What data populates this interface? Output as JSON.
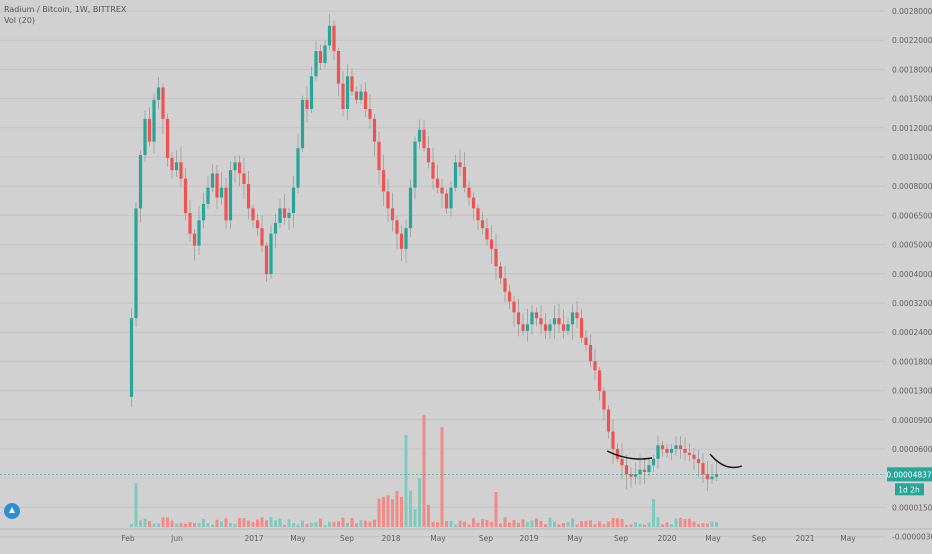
{
  "legend": {
    "symbol": "Radium / Bitcoin, 1W, BITTREX",
    "indicator": "Vol (20)"
  },
  "price_badge": {
    "value": "0.00004837",
    "countdown": "1d 2h",
    "color": "#26a69a"
  },
  "colors": {
    "up": "#26a69a",
    "down": "#ef5350",
    "up_vol": "#7fcabe",
    "down_vol": "#f28b88",
    "grid": "#c2c2c2",
    "axis_text": "#606060"
  },
  "chart_data": {
    "type": "candlestick",
    "y_scale": "log",
    "y_ticks": [
      "0.00280000",
      "0.00220000",
      "0.00180000",
      "0.00150000",
      "0.00120000",
      "0.00100000",
      "0.00080000",
      "0.00065000",
      "0.00050000",
      "0.00040000",
      "0.00032000",
      "0.00024000",
      "0.00018000",
      "0.00013000",
      "0.00009000",
      "0.00006000",
      "0.00003000",
      "0.00001500",
      "-0.00000300"
    ],
    "x_ticks": [
      "Feb",
      "Jun",
      "2017",
      "May",
      "Sep",
      "2018",
      "May",
      "Sep",
      "2019",
      "May",
      "Sep",
      "2020",
      "May",
      "Sep",
      "2021",
      "May"
    ],
    "price_path": [
      {
        "t": 0,
        "p": 9.5e-05
      },
      {
        "t": 1,
        "p": 0.00019
      },
      {
        "t": 2,
        "p": 0.0005
      },
      {
        "t": 3,
        "p": 0.0008
      },
      {
        "t": 4,
        "p": 0.0011
      },
      {
        "t": 5,
        "p": 0.0009
      },
      {
        "t": 6,
        "p": 0.0013
      },
      {
        "t": 7,
        "p": 0.00145
      },
      {
        "t": 8,
        "p": 0.0011
      },
      {
        "t": 9,
        "p": 0.00078
      },
      {
        "t": 10,
        "p": 0.0007
      },
      {
        "t": 11,
        "p": 0.00075
      },
      {
        "t": 12,
        "p": 0.00065
      },
      {
        "t": 13,
        "p": 0.00048
      },
      {
        "t": 14,
        "p": 0.0004
      },
      {
        "t": 15,
        "p": 0.00036
      },
      {
        "t": 16,
        "p": 0.00045
      },
      {
        "t": 17,
        "p": 0.00052
      },
      {
        "t": 18,
        "p": 0.0006
      },
      {
        "t": 19,
        "p": 0.00068
      },
      {
        "t": 20,
        "p": 0.00055
      },
      {
        "t": 21,
        "p": 0.0006
      },
      {
        "t": 22,
        "p": 0.00045
      },
      {
        "t": 23,
        "p": 0.0007
      },
      {
        "t": 24,
        "p": 0.00075
      },
      {
        "t": 25,
        "p": 0.00068
      },
      {
        "t": 26,
        "p": 0.00062
      },
      {
        "t": 27,
        "p": 0.0005
      },
      {
        "t": 28,
        "p": 0.00045
      },
      {
        "t": 29,
        "p": 0.00042
      },
      {
        "t": 30,
        "p": 0.00036
      },
      {
        "t": 31,
        "p": 0.00028
      },
      {
        "t": 32,
        "p": 0.0004
      },
      {
        "t": 33,
        "p": 0.00044
      },
      {
        "t": 34,
        "p": 0.0005
      },
      {
        "t": 35,
        "p": 0.00046
      },
      {
        "t": 36,
        "p": 0.00048
      },
      {
        "t": 37,
        "p": 0.0006
      },
      {
        "t": 38,
        "p": 0.00085
      },
      {
        "t": 39,
        "p": 0.0013
      },
      {
        "t": 40,
        "p": 0.0012
      },
      {
        "t": 41,
        "p": 0.0016
      },
      {
        "t": 42,
        "p": 0.002
      },
      {
        "t": 43,
        "p": 0.0018
      },
      {
        "t": 44,
        "p": 0.0021
      },
      {
        "t": 45,
        "p": 0.0025
      },
      {
        "t": 46,
        "p": 0.002
      },
      {
        "t": 47,
        "p": 0.0015
      },
      {
        "t": 48,
        "p": 0.0012
      },
      {
        "t": 49,
        "p": 0.0016
      },
      {
        "t": 50,
        "p": 0.0014
      },
      {
        "t": 51,
        "p": 0.0013
      },
      {
        "t": 52,
        "p": 0.0014
      },
      {
        "t": 53,
        "p": 0.0012
      },
      {
        "t": 54,
        "p": 0.0011
      },
      {
        "t": 55,
        "p": 0.0009
      },
      {
        "t": 56,
        "p": 0.0007
      },
      {
        "t": 57,
        "p": 0.00058
      },
      {
        "t": 58,
        "p": 0.0005
      },
      {
        "t": 59,
        "p": 0.00045
      },
      {
        "t": 60,
        "p": 0.0004
      },
      {
        "t": 61,
        "p": 0.00035
      },
      {
        "t": 62,
        "p": 0.00042
      },
      {
        "t": 63,
        "p": 0.0006
      },
      {
        "t": 64,
        "p": 0.0009
      },
      {
        "t": 65,
        "p": 0.001
      },
      {
        "t": 66,
        "p": 0.00085
      },
      {
        "t": 67,
        "p": 0.00075
      },
      {
        "t": 68,
        "p": 0.00065
      },
      {
        "t": 69,
        "p": 0.0006
      },
      {
        "t": 70,
        "p": 0.00057
      },
      {
        "t": 71,
        "p": 0.0005
      },
      {
        "t": 72,
        "p": 0.0006
      },
      {
        "t": 73,
        "p": 0.00075
      },
      {
        "t": 74,
        "p": 0.00072
      },
      {
        "t": 75,
        "p": 0.0006
      },
      {
        "t": 76,
        "p": 0.00055
      },
      {
        "t": 77,
        "p": 0.0005
      },
      {
        "t": 78,
        "p": 0.00045
      },
      {
        "t": 79,
        "p": 0.00042
      },
      {
        "t": 80,
        "p": 0.00038
      },
      {
        "t": 81,
        "p": 0.00035
      },
      {
        "t": 82,
        "p": 0.0003
      },
      {
        "t": 83,
        "p": 0.00027
      },
      {
        "t": 84,
        "p": 0.00024
      },
      {
        "t": 85,
        "p": 0.00022
      },
      {
        "t": 86,
        "p": 0.0002
      },
      {
        "t": 87,
        "p": 0.00018
      },
      {
        "t": 88,
        "p": 0.00017
      },
      {
        "t": 89,
        "p": 0.00018
      },
      {
        "t": 90,
        "p": 0.0002
      },
      {
        "t": 91,
        "p": 0.00019
      },
      {
        "t": 92,
        "p": 0.00018
      },
      {
        "t": 93,
        "p": 0.00017
      },
      {
        "t": 94,
        "p": 0.00018
      },
      {
        "t": 95,
        "p": 0.00019
      },
      {
        "t": 96,
        "p": 0.00018
      },
      {
        "t": 97,
        "p": 0.00017
      },
      {
        "t": 98,
        "p": 0.00018
      },
      {
        "t": 99,
        "p": 0.0002
      },
      {
        "t": 100,
        "p": 0.00019
      },
      {
        "t": 101,
        "p": 0.00016
      },
      {
        "t": 102,
        "p": 0.00015
      },
      {
        "t": 103,
        "p": 0.00013
      },
      {
        "t": 104,
        "p": 0.00012
      },
      {
        "t": 105,
        "p": 0.0001
      },
      {
        "t": 106,
        "p": 8.5e-05
      },
      {
        "t": 107,
        "p": 7e-05
      },
      {
        "t": 108,
        "p": 6e-05
      },
      {
        "t": 109,
        "p": 5.5e-05
      },
      {
        "t": 110,
        "p": 5.2e-05
      },
      {
        "t": 111,
        "p": 4.8e-05
      },
      {
        "t": 112,
        "p": 4.7e-05
      },
      {
        "t": 113,
        "p": 4.8e-05
      },
      {
        "t": 114,
        "p": 5e-05
      },
      {
        "t": 115,
        "p": 4.9e-05
      },
      {
        "t": 116,
        "p": 5.2e-05
      },
      {
        "t": 117,
        "p": 5.5e-05
      },
      {
        "t": 118,
        "p": 6.2e-05
      },
      {
        "t": 119,
        "p": 6e-05
      },
      {
        "t": 120,
        "p": 5.8e-05
      },
      {
        "t": 121,
        "p": 6e-05
      },
      {
        "t": 122,
        "p": 6.2e-05
      },
      {
        "t": 123,
        "p": 6e-05
      },
      {
        "t": 124,
        "p": 5.8e-05
      },
      {
        "t": 125,
        "p": 5.7e-05
      },
      {
        "t": 126,
        "p": 5.5e-05
      },
      {
        "t": 127,
        "p": 5.3e-05
      },
      {
        "t": 128,
        "p": 4.8e-05
      },
      {
        "t": 129,
        "p": 4.6e-05
      },
      {
        "t": 130,
        "p": 4.7e-05
      },
      {
        "t": 131,
        "p": 4.8e-05
      }
    ]
  }
}
